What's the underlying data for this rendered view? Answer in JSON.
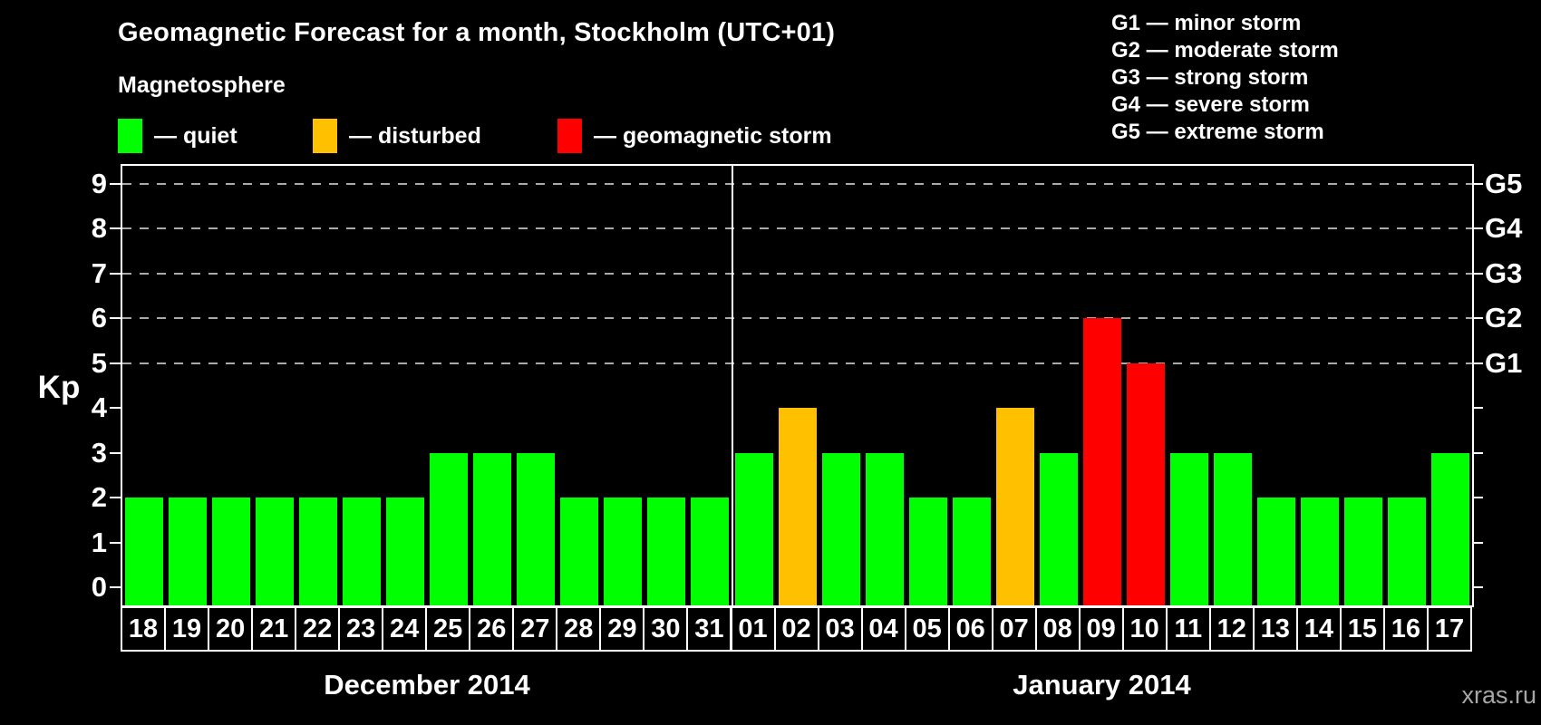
{
  "title": "Geomagnetic Forecast for a month, Stockholm (UTC+01)",
  "legend": {
    "heading": "Magnetosphere",
    "items": [
      {
        "key": "quiet",
        "label": "— quiet"
      },
      {
        "key": "disturbed",
        "label": "— disturbed"
      },
      {
        "key": "storm",
        "label": "— geomagnetic storm"
      }
    ]
  },
  "g_scale_legend": [
    "G1 — minor storm",
    "G2 — moderate storm",
    "G3 — strong storm",
    "G4 — severe storm",
    "G5 — extreme storm"
  ],
  "watermark": "xras.ru",
  "colors": {
    "background": "#000000",
    "quiet": "#00ff00",
    "disturbed": "#ffc000",
    "storm": "#ff0000",
    "axis": "#ffffff",
    "grid": "#aaaaaa",
    "watermark": "#a6a6a6"
  },
  "chart_data": {
    "type": "bar",
    "title": "Geomagnetic Forecast for a month, Stockholm (UTC+01)",
    "ylabel": "Kp",
    "ylim": [
      -0.4,
      9.4
    ],
    "yticks": [
      0,
      1,
      2,
      3,
      4,
      5,
      6,
      7,
      8,
      9
    ],
    "grid": "horizontal dashed lines at Kp 5-9 (G storm levels)",
    "gridlines_at": [
      5,
      6,
      7,
      8,
      9
    ],
    "right_axis": [
      {
        "kp": 5,
        "label": "G1"
      },
      {
        "kp": 6,
        "label": "G2"
      },
      {
        "kp": 7,
        "label": "G3"
      },
      {
        "kp": 8,
        "label": "G4"
      },
      {
        "kp": 9,
        "label": "G5"
      }
    ],
    "legend_position": "top",
    "sections": [
      {
        "label": "December 2014",
        "days": 14
      },
      {
        "label": "January 2014",
        "days": 17
      }
    ],
    "categories": [
      "18",
      "19",
      "20",
      "21",
      "22",
      "23",
      "24",
      "25",
      "26",
      "27",
      "28",
      "29",
      "30",
      "31",
      "01",
      "02",
      "03",
      "04",
      "05",
      "06",
      "07",
      "08",
      "09",
      "10",
      "11",
      "12",
      "13",
      "14",
      "15",
      "16",
      "17"
    ],
    "values": [
      2,
      2,
      2,
      2,
      2,
      2,
      2,
      3,
      3,
      3,
      2,
      2,
      2,
      2,
      3,
      4,
      3,
      3,
      2,
      2,
      4,
      3,
      6,
      5,
      3,
      3,
      2,
      2,
      2,
      2,
      3
    ],
    "points": [
      {
        "day": "18",
        "kp": 2,
        "status": "quiet"
      },
      {
        "day": "19",
        "kp": 2,
        "status": "quiet"
      },
      {
        "day": "20",
        "kp": 2,
        "status": "quiet"
      },
      {
        "day": "21",
        "kp": 2,
        "status": "quiet"
      },
      {
        "day": "22",
        "kp": 2,
        "status": "quiet"
      },
      {
        "day": "23",
        "kp": 2,
        "status": "quiet"
      },
      {
        "day": "24",
        "kp": 2,
        "status": "quiet"
      },
      {
        "day": "25",
        "kp": 3,
        "status": "quiet"
      },
      {
        "day": "26",
        "kp": 3,
        "status": "quiet"
      },
      {
        "day": "27",
        "kp": 3,
        "status": "quiet"
      },
      {
        "day": "28",
        "kp": 2,
        "status": "quiet"
      },
      {
        "day": "29",
        "kp": 2,
        "status": "quiet"
      },
      {
        "day": "30",
        "kp": 2,
        "status": "quiet"
      },
      {
        "day": "31",
        "kp": 2,
        "status": "quiet"
      },
      {
        "day": "01",
        "kp": 3,
        "status": "quiet"
      },
      {
        "day": "02",
        "kp": 4,
        "status": "disturbed"
      },
      {
        "day": "03",
        "kp": 3,
        "status": "quiet"
      },
      {
        "day": "04",
        "kp": 3,
        "status": "quiet"
      },
      {
        "day": "05",
        "kp": 2,
        "status": "quiet"
      },
      {
        "day": "06",
        "kp": 2,
        "status": "quiet"
      },
      {
        "day": "07",
        "kp": 4,
        "status": "disturbed"
      },
      {
        "day": "08",
        "kp": 3,
        "status": "quiet"
      },
      {
        "day": "09",
        "kp": 6,
        "status": "storm"
      },
      {
        "day": "10",
        "kp": 5,
        "status": "storm"
      },
      {
        "day": "11",
        "kp": 3,
        "status": "quiet"
      },
      {
        "day": "12",
        "kp": 3,
        "status": "quiet"
      },
      {
        "day": "13",
        "kp": 2,
        "status": "quiet"
      },
      {
        "day": "14",
        "kp": 2,
        "status": "quiet"
      },
      {
        "day": "15",
        "kp": 2,
        "status": "quiet"
      },
      {
        "day": "16",
        "kp": 2,
        "status": "quiet"
      },
      {
        "day": "17",
        "kp": 3,
        "status": "quiet"
      }
    ]
  }
}
